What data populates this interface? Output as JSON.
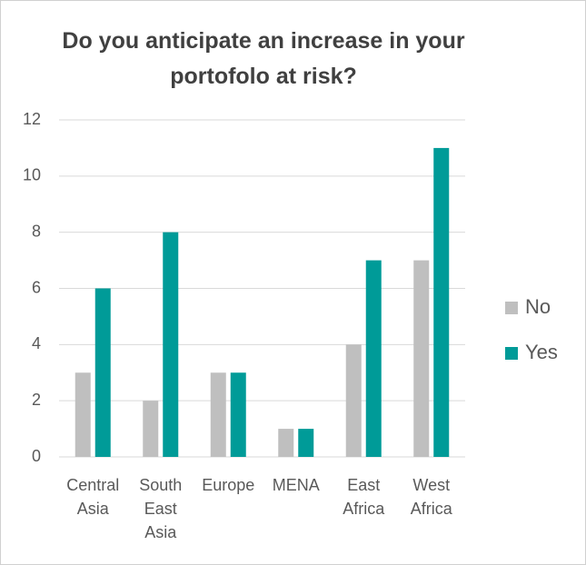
{
  "chart_data": {
    "type": "bar",
    "title": "Do you anticipate an increase in your portofolo at risk?",
    "categories": [
      "Central Asia",
      "South East Asia",
      "Europe",
      "MENA",
      "East Africa",
      "West Africa"
    ],
    "series": [
      {
        "name": "No",
        "color": "#bfbfbf",
        "values": [
          3,
          2,
          3,
          1,
          4,
          7
        ]
      },
      {
        "name": "Yes",
        "color": "#009b98",
        "values": [
          6,
          8,
          3,
          1,
          7,
          11
        ]
      }
    ],
    "ylim": [
      0,
      12
    ],
    "yticks": [
      0,
      2,
      4,
      6,
      8,
      10,
      12
    ],
    "grid": true,
    "legend": "right"
  }
}
